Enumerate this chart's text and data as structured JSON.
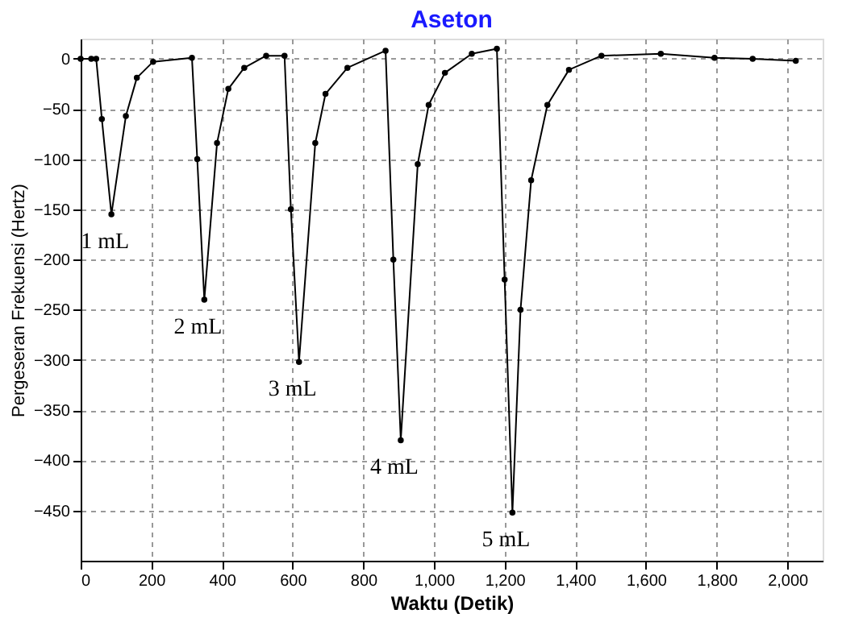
{
  "chart_data": {
    "type": "line",
    "title": "Aseton",
    "xlabel": "Waktu (Detik)",
    "ylabel": "Pergeseran Frekuensi (Hertz)",
    "xlim": [
      0,
      2100
    ],
    "xticks": [
      0,
      200,
      400,
      600,
      800,
      {
        "value": 1000,
        "label": "1,000"
      },
      {
        "value": 1200,
        "label": "1,200"
      },
      {
        "value": 1400,
        "label": "1,400"
      },
      {
        "value": 1600,
        "label": "1,600"
      },
      {
        "value": 1800,
        "label": "1,800"
      },
      {
        "value": 2000,
        "label": "2,000"
      }
    ],
    "ylim": [
      -500,
      20
    ],
    "yticks": [
      0,
      -50,
      -100,
      -150,
      -200,
      -250,
      -300,
      -350,
      -400,
      -450
    ],
    "grid": true,
    "marker": "circle",
    "line_style": "solid",
    "series": [
      {
        "color": "#000000",
        "x": [
          0,
          30,
          44,
          60,
          87,
          128,
          159,
          205,
          315,
          330,
          350,
          386,
          418,
          463,
          525,
          577,
          595,
          618,
          664,
          693,
          755,
          863,
          885,
          906,
          954,
          985,
          1031,
          1107,
          1178,
          1200,
          1222,
          1245,
          1275,
          1321,
          1382,
          1474,
          1642,
          1794,
          1902,
          2024
        ],
        "values": [
          0,
          0,
          0,
          -60,
          -155,
          -57,
          -19,
          -3,
          1,
          -100,
          -240,
          -84,
          -30,
          -9,
          3,
          3,
          -150,
          -302,
          -84,
          -35,
          -9,
          8,
          -200,
          -380,
          -105,
          -46,
          -14,
          5,
          10,
          -220,
          -452,
          -250,
          -121,
          -46,
          -11,
          3,
          5,
          1,
          0,
          -2
        ]
      }
    ],
    "annotations": [
      {
        "text": "1 mL",
        "x": 87,
        "y": -155
      },
      {
        "text": "2 mL",
        "x": 350,
        "y": -240
      },
      {
        "text": "3 mL",
        "x": 618,
        "y": -302
      },
      {
        "text": "4 mL",
        "x": 906,
        "y": -380
      },
      {
        "text": "5 mL",
        "x": 1222,
        "y": -452
      }
    ]
  }
}
